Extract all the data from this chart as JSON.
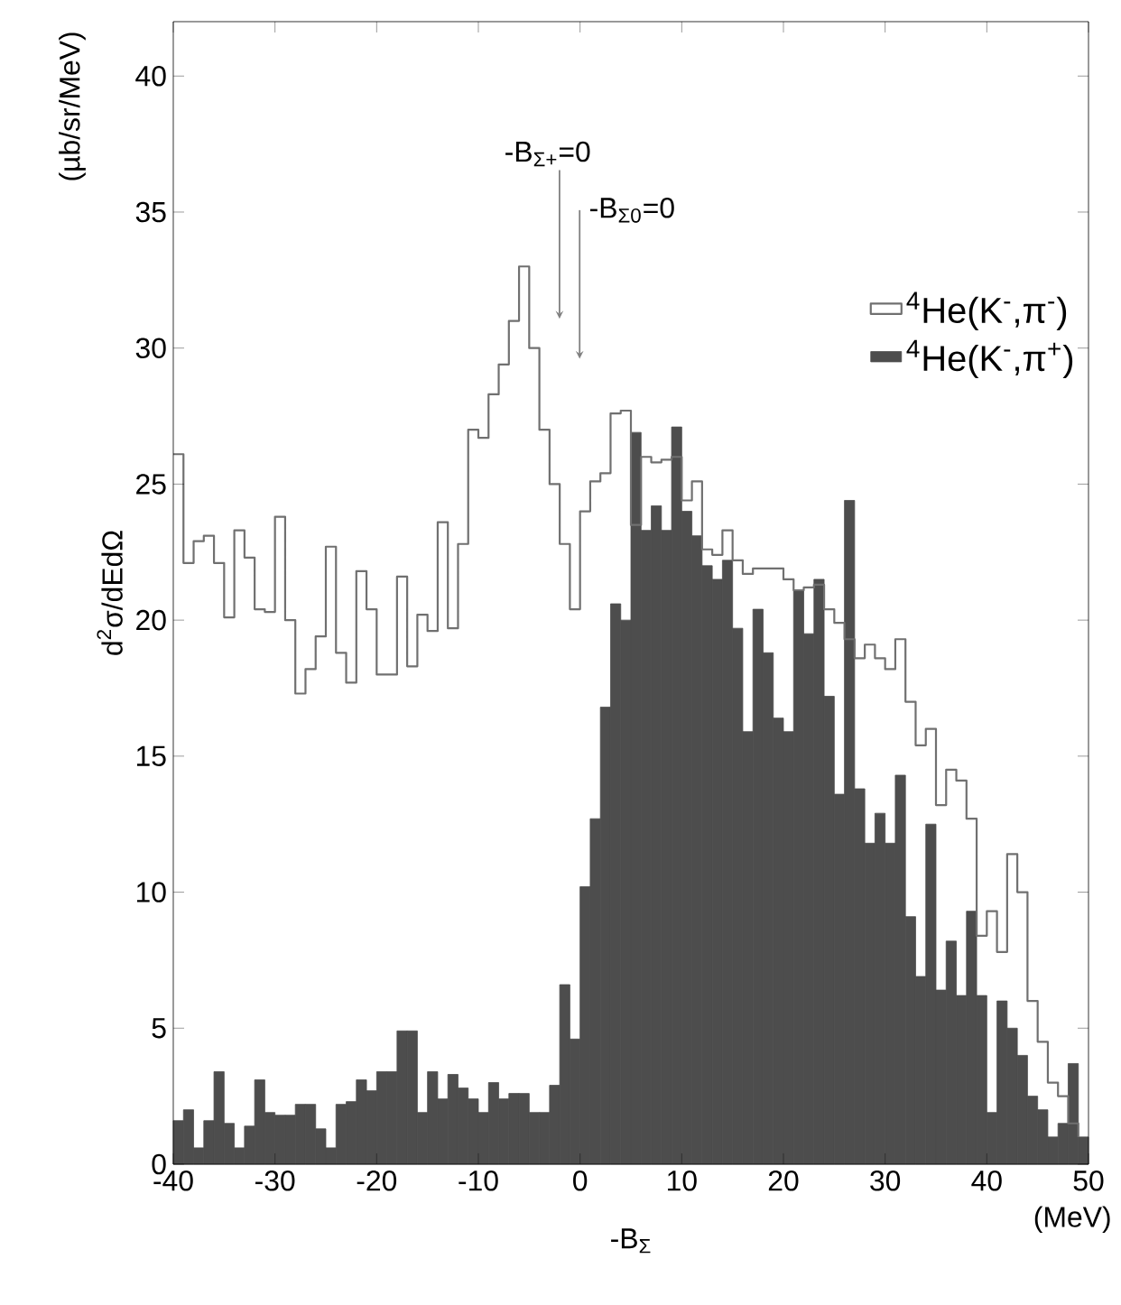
{
  "chart_data": {
    "type": "histogram",
    "xlabel": "-B$_{Σ}$",
    "ylabel": "d$^{2}$σ/dEdΩ",
    "bins": [
      -40,
      -39,
      -38,
      -37,
      -36,
      -35,
      -34,
      -33,
      -32,
      -31,
      -30,
      -29,
      -28,
      -27,
      -26,
      -25,
      -24,
      -23,
      -22,
      -21,
      -20,
      -19,
      -18,
      -17,
      -16,
      -15,
      -14,
      -13,
      -12,
      -11,
      -10,
      -9,
      -8,
      -7,
      -6,
      -5,
      -4,
      -3,
      -2,
      -1,
      0,
      1,
      2,
      3,
      4,
      5,
      6,
      7,
      8,
      9,
      10,
      11,
      12,
      13,
      14,
      15,
      16,
      17,
      18,
      19,
      20,
      21,
      22,
      23,
      24,
      25,
      26,
      27,
      28,
      29,
      30,
      31,
      32,
      33,
      34,
      35,
      36,
      37,
      38,
      39,
      40,
      41,
      42,
      43,
      44,
      45,
      46,
      47,
      48,
      49,
      50
    ],
    "series": [
      {
        "name": "$^{4}$He(K$^{-}$,π$^{-}$)",
        "type": "step",
        "color": "#707070",
        "x": [
          -40,
          -39,
          -38,
          -37,
          -36,
          -35,
          -34,
          -33,
          -32,
          -31,
          -30,
          -29,
          -28,
          -27,
          -26,
          -25,
          -24,
          -23,
          -22,
          -21,
          -20,
          -19,
          -18,
          -17,
          -16,
          -15,
          -14,
          -13,
          -12,
          -11,
          -10,
          -9,
          -8,
          -7,
          -6,
          -5,
          -4,
          -3,
          -2,
          -1,
          0,
          1,
          2,
          3,
          4,
          5,
          6,
          7,
          8,
          9,
          10,
          11,
          12,
          13,
          14,
          15,
          16,
          17,
          18,
          19,
          20,
          21,
          22,
          23,
          24,
          25,
          26,
          27,
          28,
          29,
          30,
          31,
          32,
          33,
          34,
          35,
          36,
          37,
          38,
          39,
          40,
          41,
          42,
          43,
          44,
          45,
          46,
          47,
          48,
          49
        ],
        "values": [
          26.1,
          22.1,
          22.9,
          23.1,
          22.1,
          20.1,
          23.3,
          22.3,
          20.4,
          20.3,
          23.8,
          20.0,
          17.3,
          18.2,
          19.4,
          22.7,
          18.8,
          17.7,
          21.8,
          20.4,
          18.0,
          18.0,
          21.6,
          18.3,
          20.2,
          19.6,
          23.6,
          19.7,
          22.8,
          27.0,
          26.7,
          28.3,
          29.4,
          31.0,
          33.0,
          30.0,
          27.0,
          25.0,
          22.8,
          20.4,
          24.0,
          25.1,
          25.4,
          27.6,
          27.7,
          23.5,
          26.0,
          25.8,
          25.9,
          26.0,
          24.4,
          25.1,
          22.6,
          22.4,
          23.3,
          22.2,
          21.7,
          21.9,
          21.9,
          21.9,
          21.5,
          21.1,
          21.2,
          21.3,
          20.4,
          19.9,
          19.3,
          18.6,
          19.1,
          18.6,
          18.2,
          19.3,
          17.0,
          15.4,
          16.0,
          13.2,
          14.5,
          14.1,
          12.7,
          8.4,
          9.3,
          7.8,
          11.4,
          10.0,
          6.0,
          4.5,
          3.0,
          2.5,
          1.5,
          1.0
        ]
      },
      {
        "name": "$^{4}$He(K$^{-}$,π$^{+}$)",
        "type": "histogram",
        "color": "#4d4d4d",
        "values": [
          1.6,
          2.0,
          0.6,
          1.6,
          3.4,
          1.5,
          0.6,
          1.4,
          3.1,
          1.9,
          1.8,
          1.8,
          2.2,
          2.2,
          1.3,
          0.6,
          2.2,
          2.3,
          3.1,
          2.7,
          3.4,
          3.4,
          4.9,
          4.9,
          1.9,
          3.4,
          2.4,
          3.3,
          2.8,
          2.4,
          1.9,
          3.0,
          2.4,
          2.6,
          2.6,
          1.9,
          1.9,
          2.9,
          6.6,
          4.6,
          10.2,
          12.7,
          16.8,
          20.6,
          20.0,
          26.9,
          23.3,
          24.2,
          23.3,
          27.1,
          24.0,
          23.1,
          22.0,
          21.5,
          22.2,
          19.7,
          15.9,
          20.4,
          18.8,
          16.4,
          15.9,
          21.1,
          19.5,
          21.5,
          17.2,
          13.6,
          24.4,
          13.8,
          11.8,
          12.9,
          11.8,
          14.3,
          9.1,
          6.9,
          12.5,
          6.4,
          8.2,
          6.2,
          9.3,
          6.2,
          1.9,
          6.0,
          5.0,
          4.0,
          2.5,
          2.0,
          1.0,
          1.5,
          3.7,
          1.0
        ]
      }
    ],
    "annotations": [
      "-B$_{Σ+}$=0",
      "-B$_{Σ0}$=0",
      "(MeV)",
      "(µb/sr/MeV)"
    ],
    "xlim": [
      -40,
      50
    ],
    "ylim": [
      0,
      42
    ],
    "xticks": [
      -40,
      -30,
      -20,
      -10,
      0,
      10,
      20,
      30,
      40,
      50
    ],
    "yticks": [
      0,
      5,
      10,
      15,
      20,
      25,
      30,
      35,
      40
    ],
    "legend": "top right"
  }
}
